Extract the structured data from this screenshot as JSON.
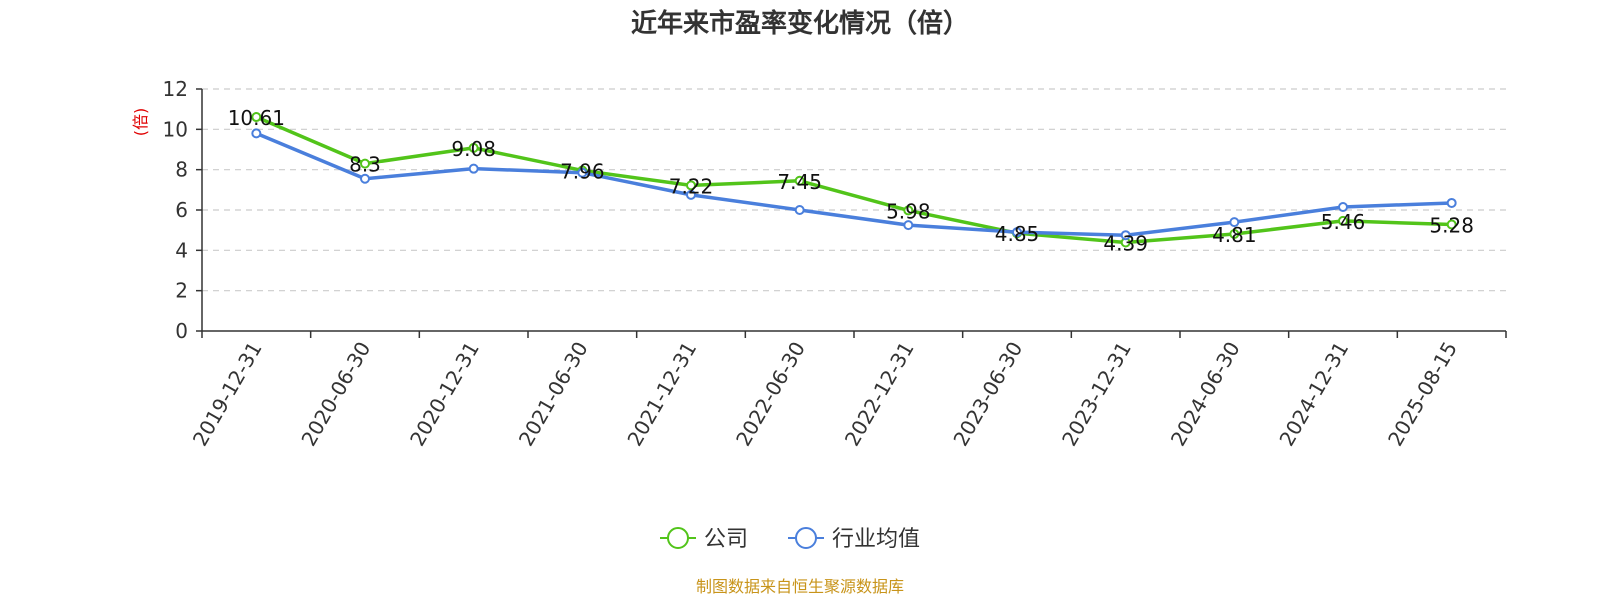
{
  "title": "近年来市盈率变化情况（倍）",
  "source_note": "制图数据来自恒生聚源数据库",
  "chart_data": {
    "type": "line",
    "title": "近年来市盈率变化情况（倍）",
    "ylabel": "(倍)",
    "xlabel": "",
    "ylim": [
      0,
      12
    ],
    "yticks": [
      0,
      2,
      4,
      6,
      8,
      10,
      12
    ],
    "grid": true,
    "legend_placement": "bottom-center",
    "categories": [
      "2019-12-31",
      "2020-06-30",
      "2020-12-31",
      "2021-06-30",
      "2021-12-31",
      "2022-06-30",
      "2022-12-31",
      "2023-06-30",
      "2023-12-31",
      "2024-06-30",
      "2024-12-31",
      "2025-08-15"
    ],
    "series": [
      {
        "name": "公司",
        "color": "#52c41a",
        "values": [
          10.61,
          8.3,
          9.08,
          7.96,
          7.22,
          7.45,
          5.98,
          4.85,
          4.39,
          4.81,
          5.46,
          5.28
        ],
        "labels": [
          "10.61",
          "8.3",
          "9.08",
          "7.96",
          "7.22",
          "7.45",
          "5.98",
          "4.85",
          "4.39",
          "4.81",
          "5.46",
          "5.28"
        ]
      },
      {
        "name": "行业均值",
        "color": "#4a7fdc",
        "values": [
          9.8,
          7.55,
          8.05,
          7.85,
          6.75,
          6.0,
          5.25,
          4.9,
          4.75,
          5.4,
          6.15,
          6.35
        ]
      }
    ]
  }
}
